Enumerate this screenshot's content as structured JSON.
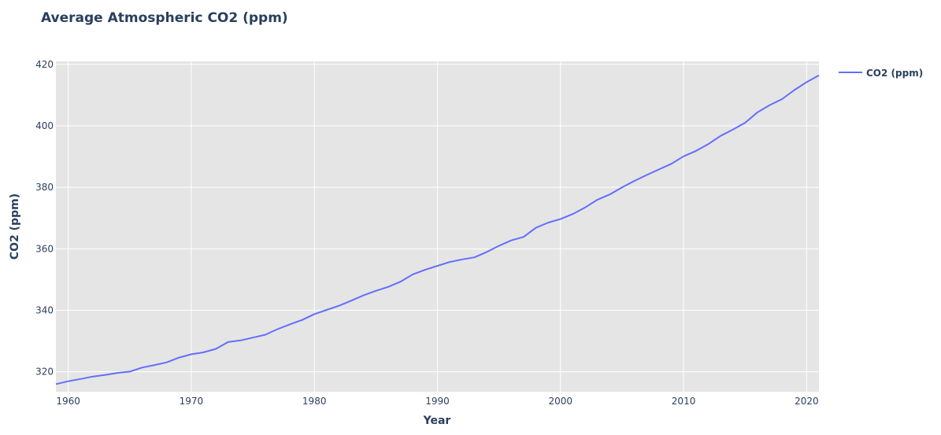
{
  "chart_data": {
    "type": "line",
    "title": "Average Atmospheric CO2 (ppm)",
    "xlabel": "Year",
    "ylabel": "CO2 (ppm)",
    "xlim": [
      1959,
      2021
    ],
    "ylim": [
      313.5,
      421
    ],
    "x_ticks": [
      1960,
      1970,
      1980,
      1990,
      2000,
      2010,
      2020
    ],
    "y_ticks": [
      320,
      340,
      360,
      380,
      400,
      420
    ],
    "grid": true,
    "legend_position": "right",
    "plot_background": "#e5e5e5",
    "series": [
      {
        "name": "CO2 (ppm)",
        "color": "#636efa",
        "x": [
          1959,
          1960,
          1961,
          1962,
          1963,
          1964,
          1965,
          1966,
          1967,
          1968,
          1969,
          1970,
          1971,
          1972,
          1973,
          1974,
          1975,
          1976,
          1977,
          1978,
          1979,
          1980,
          1981,
          1982,
          1983,
          1984,
          1985,
          1986,
          1987,
          1988,
          1989,
          1990,
          1991,
          1992,
          1993,
          1994,
          1995,
          1996,
          1997,
          1998,
          1999,
          2000,
          2001,
          2002,
          2003,
          2004,
          2005,
          2006,
          2007,
          2008,
          2009,
          2010,
          2011,
          2012,
          2013,
          2014,
          2015,
          2016,
          2017,
          2018,
          2019,
          2020,
          2021
        ],
        "values": [
          315.98,
          316.91,
          317.64,
          318.45,
          318.99,
          319.62,
          320.04,
          321.37,
          322.18,
          323.05,
          324.62,
          325.68,
          326.32,
          327.46,
          329.68,
          330.19,
          331.12,
          332.03,
          333.84,
          335.41,
          336.84,
          338.76,
          340.12,
          341.48,
          343.15,
          344.87,
          346.35,
          347.61,
          349.31,
          351.69,
          353.2,
          354.45,
          355.7,
          356.54,
          357.21,
          358.96,
          360.97,
          362.74,
          363.88,
          366.84,
          368.54,
          369.71,
          371.32,
          373.45,
          375.98,
          377.7,
          379.98,
          382.09,
          384.02,
          385.83,
          387.64,
          390.1,
          391.85,
          394.06,
          396.74,
          398.81,
          401.01,
          404.41,
          406.76,
          408.72,
          411.66,
          414.24,
          416.45
        ]
      }
    ]
  }
}
